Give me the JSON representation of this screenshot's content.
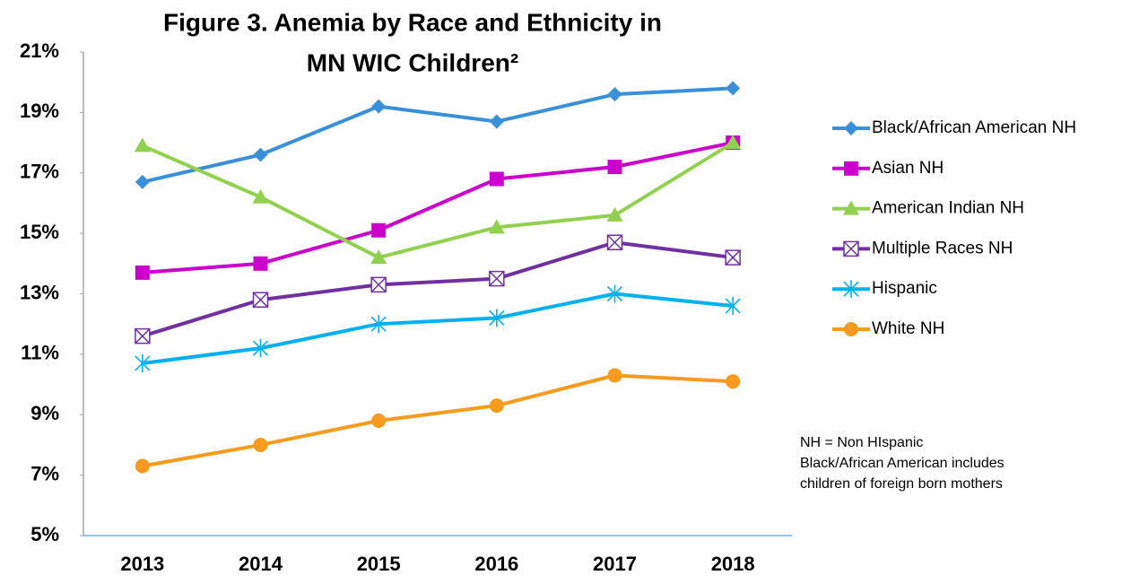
{
  "chart_data": {
    "type": "line",
    "title": [
      "Figure 3. Anemia by Race and Ethnicity in",
      "MN WIC Children²"
    ],
    "categories": [
      "2013",
      "2014",
      "2015",
      "2016",
      "2017",
      "2018"
    ],
    "series": [
      {
        "name": "Black/African American NH",
        "color": "#3a8fd9",
        "marker": "diamond",
        "values": [
          16.7,
          17.6,
          19.2,
          18.7,
          19.6,
          19.8
        ]
      },
      {
        "name": "Asian NH",
        "color": "#cc00cc",
        "marker": "square",
        "values": [
          13.7,
          14.0,
          15.1,
          16.8,
          17.2,
          18.0
        ]
      },
      {
        "name": "American Indian NH",
        "color": "#92d050",
        "marker": "triangle",
        "values": [
          17.9,
          16.2,
          14.2,
          15.2,
          15.6,
          18.0
        ]
      },
      {
        "name": "Multiple Races NH",
        "color": "#7030a0",
        "marker": "boxx",
        "values": [
          11.6,
          12.8,
          13.3,
          13.5,
          14.7,
          14.2
        ]
      },
      {
        "name": "Hispanic",
        "color": "#00b0f0",
        "marker": "star",
        "values": [
          10.7,
          11.2,
          12.0,
          12.2,
          13.0,
          12.6
        ]
      },
      {
        "name": "White NH",
        "color": "#f79b1e",
        "marker": "circle",
        "values": [
          7.3,
          8.0,
          8.8,
          9.3,
          10.3,
          10.1
        ]
      }
    ],
    "ylim": [
      5,
      21
    ],
    "yticks": [
      {
        "value": 5,
        "label": "5%"
      },
      {
        "value": 7,
        "label": "7%"
      },
      {
        "value": 9,
        "label": "9%"
      },
      {
        "value": 11,
        "label": "11%"
      },
      {
        "value": 13,
        "label": "13%"
      },
      {
        "value": 15,
        "label": "15%"
      },
      {
        "value": 17,
        "label": "17%"
      },
      {
        "value": 19,
        "label": "19%"
      },
      {
        "value": 21,
        "label": "21%"
      }
    ],
    "grid": false,
    "legend": "right",
    "annotations": [
      "NH = Non HIspanic",
      "Black/African American includes",
      "children of foreign born mothers"
    ]
  }
}
